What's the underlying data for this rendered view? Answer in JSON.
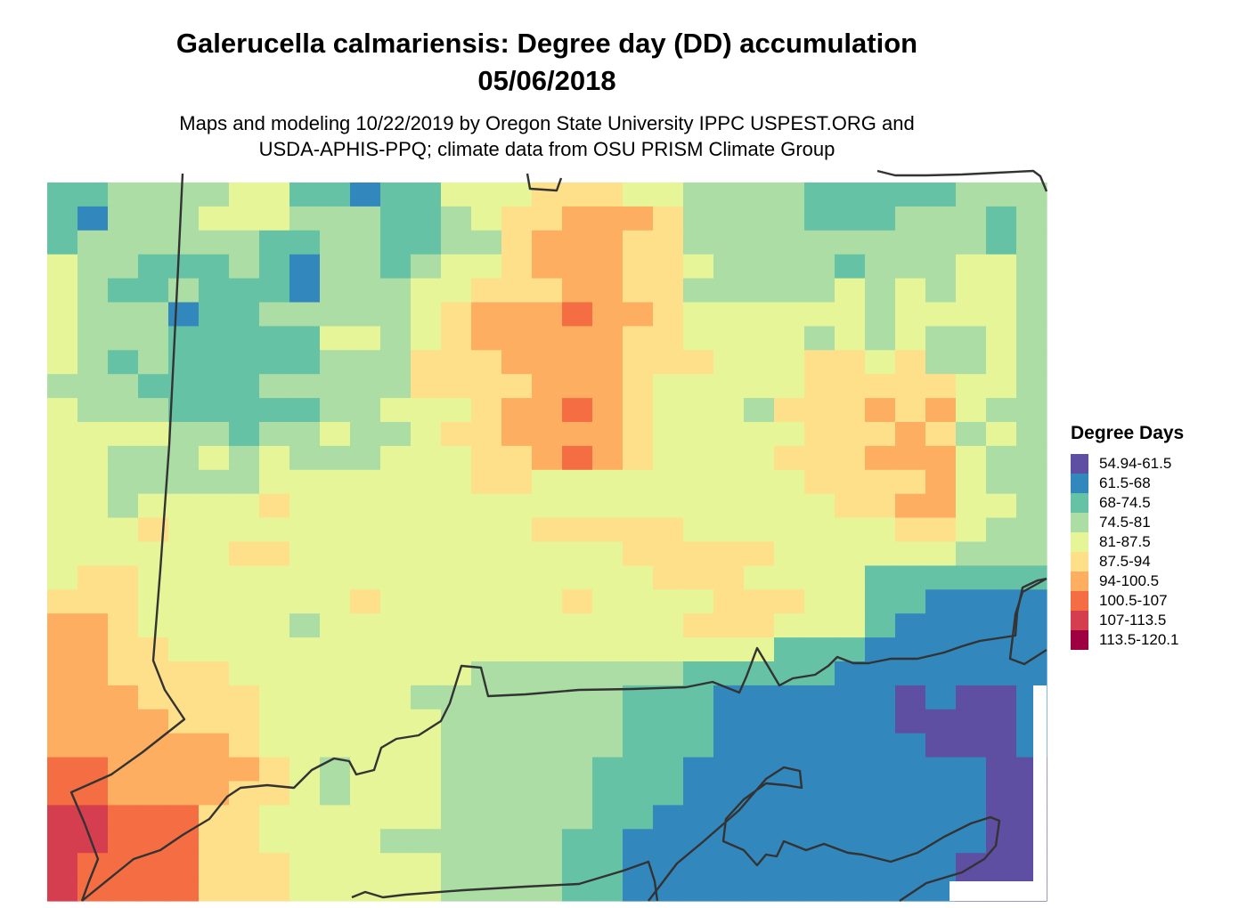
{
  "title": {
    "line1": "Galerucella calmariensis: Degree day (DD) accumulation",
    "line2": "05/06/2018"
  },
  "subtitle": {
    "line1": "Maps and modeling 10/22/2019 by Oregon State University IPPC USPEST.ORG and",
    "line2": "USDA-APHIS-PPQ; climate data from OSU PRISM Climate Group"
  },
  "legend": {
    "title": "Degree Days",
    "items": [
      {
        "label": "54.94-61.5",
        "color": "#5E4FA2"
      },
      {
        "label": "61.5-68",
        "color": "#3288BD"
      },
      {
        "label": "68-74.5",
        "color": "#66C2A5"
      },
      {
        "label": "74.5-81",
        "color": "#ABDDA4"
      },
      {
        "label": "81-87.5",
        "color": "#E6F598"
      },
      {
        "label": "87.5-94",
        "color": "#FEE08B"
      },
      {
        "label": "94-100.5",
        "color": "#FDAE61"
      },
      {
        "label": "100.5-107",
        "color": "#F46D43"
      },
      {
        "label": "107-113.5",
        "color": "#D53E4F"
      },
      {
        "label": "113.5-120.1",
        "color": "#9E0142"
      }
    ]
  },
  "map_grid": {
    "rows": [
      "334444553323355566655444433333444",
      "324445554443345667776444433344434",
      "344444433443344677766444444444434",
      "544333432443455677766544443444554",
      "543343332444556667766444445454554",
      "544423344444567778776555555455554",
      "544433333554567777766555545454454",
      "543433333444666777766655566564454",
      "444333344444666677765555566666554",
      "544433333445556778765554666767544",
      "555544344544566777765555566676454",
      "554445454445556678765555666777544",
      "554444455555556655555555566667544",
      "554555565555555555555555556677554",
      "555655555555555566666555555566544",
      "555555665555555555566666555555444",
      "566555555555555555556665555333333",
      "666555555565555556555566655332222",
      "776555554555555555555666555322222",
      "776655555555555555555555333222222",
      "776666555555554444444333332222222",
      "777666655555444444433322222212112",
      "777766655555544444433322222211112",
      "777777655555544444433322222221112",
      "887777765455544444333222222222211",
      "887777665455544444333222222222211",
      "998886655555544444332222222222211",
      "998886655554444443322222222222211",
      "988886665555544443322222222222111",
      "988886665555544443322222222222111"
    ]
  }
}
